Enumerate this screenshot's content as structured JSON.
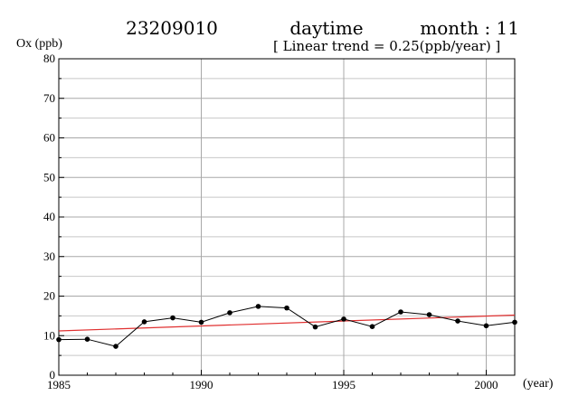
{
  "header": {
    "station": "23209010",
    "period": "daytime",
    "month": "month : 11",
    "trend": "[ Linear trend = 0.25(ppb/year) ]"
  },
  "chart_data": {
    "type": "line",
    "ylabel": "Ox (ppb)",
    "xlabel": "(year)",
    "xlim": [
      1985,
      2001
    ],
    "ylim": [
      0,
      80
    ],
    "x_ticks": [
      1985,
      1990,
      1995,
      2000
    ],
    "y_ticks": [
      0,
      10,
      20,
      30,
      40,
      50,
      60,
      70,
      80
    ],
    "x_minor_step": 1,
    "y_minor_step": 5,
    "grid": true,
    "x": [
      1985,
      1986,
      1987,
      1988,
      1989,
      1990,
      1991,
      1992,
      1993,
      1994,
      1995,
      1996,
      1997,
      1998,
      1999,
      2000,
      2001
    ],
    "series": [
      {
        "values": [
          9.0,
          9.1,
          7.3,
          13.5,
          14.5,
          13.4,
          15.8,
          17.4,
          17.0,
          12.2,
          14.2,
          12.3,
          16.0,
          15.3,
          13.7,
          12.5,
          13.4
        ],
        "color": "#000000"
      }
    ],
    "trend_line": {
      "x": [
        1985,
        2001
      ],
      "y": [
        11.2,
        15.2
      ],
      "color": "#e03030"
    }
  }
}
